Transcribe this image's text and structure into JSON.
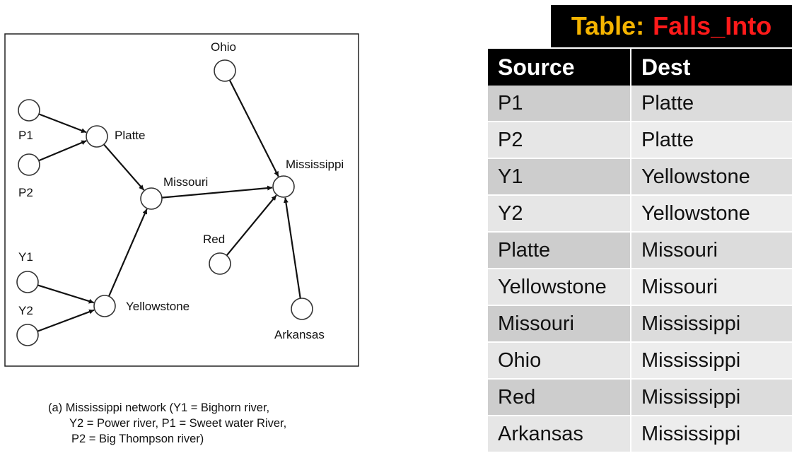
{
  "diagram": {
    "nodes": [
      {
        "id": "Ohio",
        "label": "Ohio"
      },
      {
        "id": "P1",
        "label": "P1"
      },
      {
        "id": "Platte",
        "label": "Platte"
      },
      {
        "id": "P2",
        "label": "P2"
      },
      {
        "id": "Missouri",
        "label": "Missouri"
      },
      {
        "id": "Mississippi",
        "label": "Mississippi"
      },
      {
        "id": "Red",
        "label": "Red"
      },
      {
        "id": "Y1",
        "label": "Y1"
      },
      {
        "id": "Y2",
        "label": "Y2"
      },
      {
        "id": "Yellowstone",
        "label": "Yellowstone"
      },
      {
        "id": "Arkansas",
        "label": "Arkansas"
      }
    ],
    "edges": [
      {
        "from": "P1",
        "to": "Platte"
      },
      {
        "from": "P2",
        "to": "Platte"
      },
      {
        "from": "Y1",
        "to": "Yellowstone"
      },
      {
        "from": "Y2",
        "to": "Yellowstone"
      },
      {
        "from": "Platte",
        "to": "Missouri"
      },
      {
        "from": "Yellowstone",
        "to": "Missouri"
      },
      {
        "from": "Missouri",
        "to": "Mississippi"
      },
      {
        "from": "Ohio",
        "to": "Mississippi"
      },
      {
        "from": "Red",
        "to": "Mississippi"
      },
      {
        "from": "Arkansas",
        "to": "Mississippi"
      }
    ],
    "caption_lines": [
      "(a) Mississippi network (Y1 = Bighorn river,",
      "Y2 = Power river, P1 = Sweet water River,",
      "P2 = Big Thompson river)"
    ]
  },
  "table": {
    "title_prefix": "Table:",
    "title_name": "Falls_Into",
    "headers": [
      "Source",
      "Dest"
    ],
    "rows": [
      [
        "P1",
        "Platte"
      ],
      [
        "P2",
        "Platte"
      ],
      [
        "Y1",
        "Yellowstone"
      ],
      [
        "Y2",
        "Yellowstone"
      ],
      [
        "Platte",
        "Missouri"
      ],
      [
        "Yellowstone",
        "Missouri"
      ],
      [
        "Missouri",
        "Mississippi"
      ],
      [
        "Ohio",
        "Mississippi"
      ],
      [
        "Red",
        "Mississippi"
      ],
      [
        "Arkansas",
        "Mississippi"
      ]
    ],
    "colors": {
      "title_bg": "#000000",
      "title_prefix": "#f5b400",
      "title_name": "#ff1a1a",
      "header_bg": "#000000"
    }
  }
}
